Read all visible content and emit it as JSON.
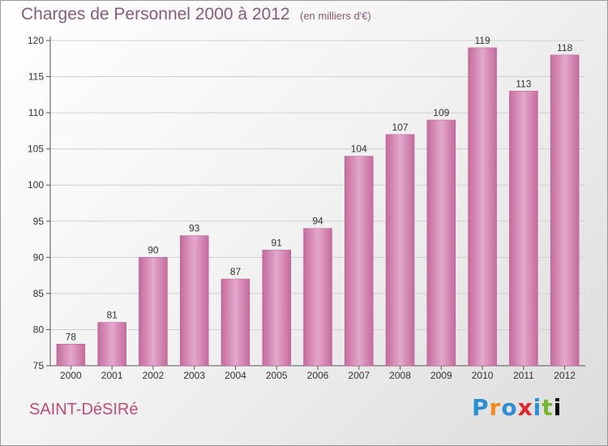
{
  "header": {
    "title": "Charges de Personnel 2000 à 2012",
    "subtitle": "(en milliers d'€)"
  },
  "footer": {
    "city": "SAINT-DéSIRé",
    "brand_letters": [
      "P",
      "r",
      "o",
      "x",
      "i",
      "t",
      "i"
    ]
  },
  "colors": {
    "bar": "#c56b9d",
    "bar_light": "#e3a8cb",
    "title": "#8a5a7a",
    "city": "#c24d7a"
  },
  "chart_data": {
    "type": "bar",
    "title": "Charges de Personnel 2000 à 2012",
    "subtitle": "(en milliers d'€)",
    "categories": [
      "2000",
      "2001",
      "2002",
      "2003",
      "2004",
      "2005",
      "2006",
      "2007",
      "2008",
      "2009",
      "2010",
      "2011",
      "2012"
    ],
    "values": [
      78,
      81,
      90,
      93,
      87,
      91,
      94,
      104,
      107,
      109,
      119,
      113,
      118
    ],
    "ylim": [
      75,
      120
    ],
    "yticks": [
      75,
      80,
      85,
      90,
      95,
      100,
      105,
      110,
      115,
      120
    ],
    "grid": true,
    "data_labels": true
  }
}
